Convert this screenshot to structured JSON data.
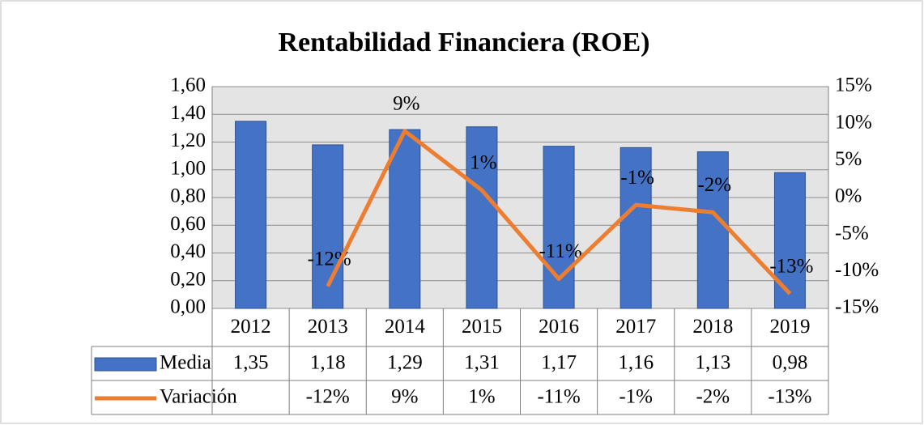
{
  "chart_data": {
    "type": "bar",
    "title": "Rentabilidad Financiera (ROE)",
    "categories": [
      "2012",
      "2013",
      "2014",
      "2015",
      "2016",
      "2017",
      "2018",
      "2019"
    ],
    "series": [
      {
        "name": "Media",
        "type": "bar",
        "color": "#4472c4",
        "values": [
          1.35,
          1.18,
          1.29,
          1.31,
          1.17,
          1.16,
          1.13,
          0.98
        ],
        "value_labels": [
          "1,35",
          "1,18",
          "1,29",
          "1,31",
          "1,17",
          "1,16",
          "1,13",
          "0,98"
        ]
      },
      {
        "name": "Variación",
        "type": "line",
        "axis": "y2",
        "color": "#ed7d31",
        "values": [
          null,
          -12,
          9,
          1,
          -11,
          -1,
          -2,
          -13
        ],
        "value_labels": [
          null,
          "-12%",
          "9%",
          "1%",
          "-11%",
          "-1%",
          "-2%",
          "-13%"
        ]
      }
    ],
    "ylim": [
      0,
      1.6
    ],
    "yticks": [
      {
        "value": 0,
        "label": "0,00"
      },
      {
        "value": 0.2,
        "label": "0,20"
      },
      {
        "value": 0.4,
        "label": "0,40"
      },
      {
        "value": 0.6,
        "label": "0,60"
      },
      {
        "value": 0.8,
        "label": "0,80"
      },
      {
        "value": 1.0,
        "label": "1,00"
      },
      {
        "value": 1.2,
        "label": "1,20"
      },
      {
        "value": 1.4,
        "label": "1,40"
      },
      {
        "value": 1.6,
        "label": "1,60"
      }
    ],
    "y2lim": [
      -15,
      15
    ],
    "y2ticks": [
      {
        "value": -15,
        "label": "-15%"
      },
      {
        "value": -10,
        "label": "-10%"
      },
      {
        "value": -5,
        "label": "-5%"
      },
      {
        "value": 0,
        "label": "0%"
      },
      {
        "value": 5,
        "label": "5%"
      },
      {
        "value": 10,
        "label": "10%"
      },
      {
        "value": 15,
        "label": "15%"
      }
    ],
    "grid": true,
    "data_table": true
  }
}
